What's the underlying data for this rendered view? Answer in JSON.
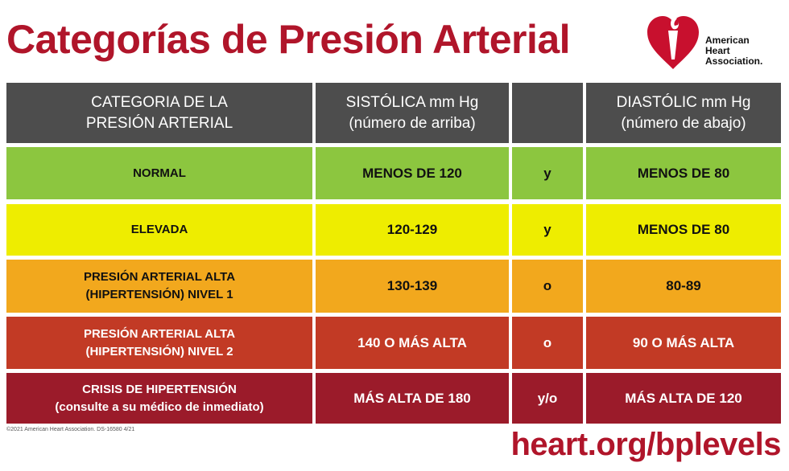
{
  "title": "Categorías de Presión Arterial",
  "logo": {
    "text": "American\nHeart\nAssociation."
  },
  "headers": {
    "category": "CATEGORIA DE LA\nPRESIÓN ARTERIAL",
    "systolic": "SISTÓLICA mm Hg\n(número de arriba)",
    "connector": "",
    "diastolic": "DIASTÓLIC mm Hg\n(número de abajo)"
  },
  "rows": [
    {
      "category": "NORMAL",
      "systolic": "MENOS DE 120",
      "connector": "y",
      "diastolic": "MENOS DE 80"
    },
    {
      "category": "ELEVADA",
      "systolic": "120-129",
      "connector": "y",
      "diastolic": "MENOS DE 80"
    },
    {
      "category": "PRESIÓN ARTERIAL ALTA\n(HIPERTENSIÓN) NIVEL 1",
      "systolic": "130-139",
      "connector": "o",
      "diastolic": "80-89"
    },
    {
      "category": "PRESIÓN ARTERIAL ALTA\n(HIPERTENSIÓN) NIVEL 2",
      "systolic": "140 O MÁS ALTA",
      "connector": "o",
      "diastolic": "90 O MÁS ALTA"
    },
    {
      "category": "CRISIS DE HIPERTENSIÓN\n(consulte a su médico de inmediato)",
      "systolic": "MÁS ALTA DE 180",
      "connector": "y/o",
      "diastolic": "MÁS ALTA DE 120"
    }
  ],
  "colors": {
    "brand": "#b0152a",
    "header": "#4d4d4d",
    "normal": "#8cc63f",
    "elevada": "#eeed00",
    "alta1": "#f2a81d",
    "alta2": "#c23a25",
    "crisis": "#9b1b2a"
  },
  "footer": {
    "copyright": "©2021 American Heart Association. DS-16580 4/21",
    "url": "heart.org/bplevels"
  }
}
